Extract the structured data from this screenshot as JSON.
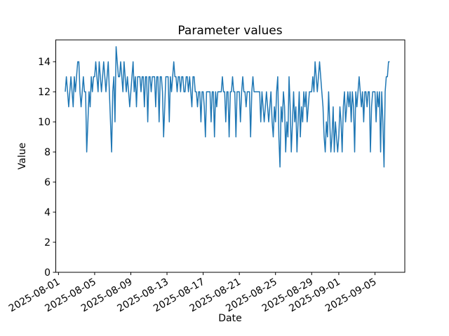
{
  "figure": {
    "background": "#ffffff",
    "text_color": "#000000"
  },
  "chart_data": {
    "type": "line",
    "title": "Parameter values",
    "xlabel": "Date",
    "ylabel": "Value",
    "line_color": "#1f77b4",
    "grid": false,
    "x_unit": "days since 2025-08-01",
    "xlim_days": [
      -0.3,
      38.3
    ],
    "ylim": [
      0,
      15.45
    ],
    "yticks": [
      0,
      2,
      4,
      6,
      8,
      10,
      12,
      14
    ],
    "xticks": {
      "days": [
        0,
        4,
        8,
        12,
        16,
        20,
        24,
        28,
        31,
        35
      ],
      "labels": [
        "2025-08-01",
        "2025-08-05",
        "2025-08-09",
        "2025-08-13",
        "2025-08-17",
        "2025-08-21",
        "2025-08-25",
        "2025-08-29",
        "2025-09-01",
        "2025-09-05"
      ],
      "rotation_deg": 30
    },
    "series": [
      {
        "name": "parameter-values",
        "start_day": 0.75,
        "step_days": 0.125,
        "values": [
          12,
          13,
          12,
          11,
          12,
          13,
          12,
          11,
          13,
          12,
          13,
          14,
          14,
          12,
          11,
          12,
          13,
          12,
          12,
          8,
          10,
          12,
          11,
          13,
          12,
          13,
          13,
          14,
          13,
          12,
          14,
          13,
          12,
          13,
          14,
          13,
          12,
          13,
          14,
          12,
          10,
          8,
          12,
          13,
          10,
          15,
          14,
          13,
          13,
          14,
          13,
          12,
          14,
          13,
          12,
          13,
          12,
          11,
          12,
          13,
          14,
          12,
          13,
          11,
          13,
          13,
          13,
          12,
          13,
          13,
          11,
          13,
          13,
          10,
          13,
          13,
          12,
          13,
          13,
          13,
          11,
          13,
          13,
          10,
          13,
          13,
          12,
          9,
          11,
          13,
          13,
          13,
          10,
          13,
          12,
          13,
          14,
          13,
          13,
          12,
          13,
          13,
          12,
          13,
          13,
          12,
          12,
          13,
          13,
          12,
          13,
          12,
          11,
          13,
          13,
          12,
          12,
          11,
          12,
          12,
          10,
          12,
          12,
          11,
          9,
          12,
          12,
          12,
          12,
          10,
          12,
          12,
          9,
          12,
          11,
          12,
          12,
          12,
          12,
          13,
          12,
          12,
          10,
          12,
          12,
          9,
          12,
          12,
          13,
          12,
          12,
          9,
          12,
          12,
          12,
          10,
          12,
          13,
          12,
          12,
          11,
          12,
          12,
          12,
          9,
          12,
          13,
          12,
          12,
          12,
          12,
          12,
          12,
          10,
          12,
          11,
          10,
          11,
          12,
          11,
          10,
          11,
          12,
          10,
          9,
          11,
          10,
          12,
          13,
          9,
          7,
          11,
          10,
          12,
          11,
          8,
          10,
          9,
          13,
          11,
          8,
          10,
          12,
          10,
          11,
          8,
          10,
          12,
          9,
          11,
          10,
          12,
          11,
          12,
          10,
          11,
          12,
          12,
          12,
          13,
          12,
          14,
          13,
          12,
          13,
          14,
          13,
          12,
          11,
          9,
          8,
          10,
          9,
          12,
          10,
          8,
          9,
          11,
          8,
          10,
          9,
          8,
          9,
          11,
          10,
          8,
          11,
          12,
          10,
          11,
          12,
          11,
          12,
          10,
          12,
          11,
          8,
          12,
          11,
          12,
          13,
          12,
          11,
          12,
          10,
          12,
          12,
          11,
          12,
          12,
          8,
          11,
          12,
          12,
          12,
          10,
          12,
          11,
          12,
          8,
          12,
          10,
          7,
          12,
          13,
          13,
          14,
          14
        ]
      }
    ]
  }
}
